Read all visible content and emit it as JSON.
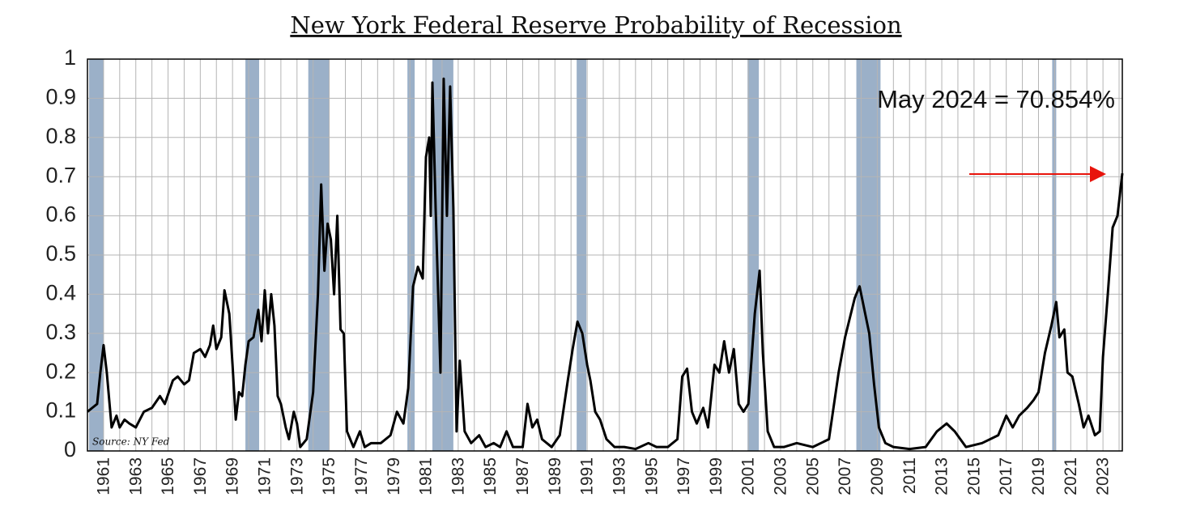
{
  "chart_data": {
    "type": "line",
    "title": "New York Federal Reserve Probability of Recession",
    "annotation": "May 2024 = 70.854%",
    "source": "Source: NY Fed",
    "color": "#000000",
    "recession_color": "#9bb0c8",
    "grid": true,
    "xlim": [
      1960,
      2024.2
    ],
    "ylim": [
      0,
      1
    ],
    "yticks": [
      0,
      0.1,
      0.2,
      0.3,
      0.4,
      0.5,
      0.6,
      0.7,
      0.8,
      0.9,
      1
    ],
    "xticks": [
      1961,
      1963,
      1965,
      1967,
      1969,
      1971,
      1973,
      1975,
      1977,
      1979,
      1981,
      1983,
      1985,
      1987,
      1989,
      1991,
      1993,
      1995,
      1997,
      1999,
      2001,
      2003,
      2005,
      2007,
      2009,
      2011,
      2013,
      2015,
      2017,
      2019,
      2021,
      2023
    ],
    "xminorticks": [
      1962,
      1964,
      1966,
      1968,
      1970,
      1972,
      1974,
      1976,
      1978,
      1980,
      1982,
      1984,
      1986,
      1988,
      1990,
      1992,
      1994,
      1996,
      1998,
      2000,
      2002,
      2004,
      2006,
      2008,
      2010,
      2012,
      2014,
      2016,
      2018,
      2020,
      2022,
      2024
    ],
    "recessions": [
      [
        1960.1,
        1961.0
      ],
      [
        1969.8,
        1970.65
      ],
      [
        1973.7,
        1975.0
      ],
      [
        1979.85,
        1980.3
      ],
      [
        1981.4,
        1982.7
      ],
      [
        1990.35,
        1990.95
      ],
      [
        2000.95,
        2001.65
      ],
      [
        2007.7,
        2009.2
      ],
      [
        2019.85,
        2020.1
      ]
    ],
    "x": [
      1960.0,
      1960.3,
      1960.6,
      1960.8,
      1961.0,
      1961.2,
      1961.5,
      1961.8,
      1962.0,
      1962.3,
      1962.6,
      1963.0,
      1963.5,
      1964.0,
      1964.5,
      1964.8,
      1965.3,
      1965.6,
      1966.0,
      1966.3,
      1966.6,
      1967.0,
      1967.3,
      1967.6,
      1967.8,
      1968.0,
      1968.3,
      1968.5,
      1968.8,
      1969.0,
      1969.2,
      1969.4,
      1969.6,
      1969.8,
      1970.0,
      1970.3,
      1970.6,
      1970.8,
      1971.0,
      1971.2,
      1971.4,
      1971.6,
      1971.8,
      1972.0,
      1972.3,
      1972.5,
      1972.8,
      1973.0,
      1973.2,
      1973.6,
      1974.0,
      1974.3,
      1974.5,
      1974.7,
      1974.9,
      1975.1,
      1975.3,
      1975.5,
      1975.7,
      1975.9,
      1976.1,
      1976.5,
      1976.9,
      1977.2,
      1977.6,
      1978.2,
      1978.8,
      1979.2,
      1979.6,
      1979.9,
      1980.2,
      1980.5,
      1980.8,
      1981.0,
      1981.2,
      1981.3,
      1981.4,
      1981.6,
      1981.9,
      1982.1,
      1982.3,
      1982.5,
      1982.7,
      1982.9,
      1983.1,
      1983.4,
      1983.8,
      1984.3,
      1984.7,
      1985.2,
      1985.6,
      1986.0,
      1986.4,
      1987.0,
      1987.3,
      1987.6,
      1987.9,
      1988.2,
      1988.8,
      1989.3,
      1989.8,
      1990.1,
      1990.4,
      1990.7,
      1991.0,
      1991.2,
      1991.5,
      1991.8,
      1992.2,
      1992.7,
      1993.3,
      1994.0,
      1994.8,
      1995.3,
      1996.0,
      1996.6,
      1996.9,
      1997.2,
      1997.5,
      1997.8,
      1998.2,
      1998.5,
      1998.9,
      1999.2,
      1999.5,
      1999.8,
      2000.1,
      2000.4,
      2000.7,
      2001.0,
      2001.4,
      2001.7,
      2001.9,
      2002.2,
      2002.6,
      2003.2,
      2004.0,
      2005.0,
      2006.0,
      2006.6,
      2007.0,
      2007.3,
      2007.6,
      2007.9,
      2008.2,
      2008.5,
      2008.8,
      2009.1,
      2009.5,
      2010.0,
      2011.0,
      2012.0,
      2012.7,
      2013.3,
      2013.8,
      2014.5,
      2015.5,
      2016.5,
      2017.0,
      2017.4,
      2017.8,
      2018.3,
      2018.7,
      2019.0,
      2019.4,
      2019.8,
      2020.1,
      2020.3,
      2020.6,
      2020.8,
      2021.1,
      2021.5,
      2021.8,
      2022.1,
      2022.5,
      2022.8,
      2023.0,
      2023.3,
      2023.6,
      2023.9,
      2024.2
    ],
    "values": [
      0.1,
      0.11,
      0.12,
      0.2,
      0.27,
      0.2,
      0.06,
      0.09,
      0.06,
      0.08,
      0.07,
      0.06,
      0.1,
      0.11,
      0.14,
      0.12,
      0.18,
      0.19,
      0.17,
      0.18,
      0.25,
      0.26,
      0.24,
      0.27,
      0.32,
      0.26,
      0.29,
      0.41,
      0.35,
      0.22,
      0.08,
      0.15,
      0.14,
      0.22,
      0.28,
      0.29,
      0.36,
      0.28,
      0.41,
      0.3,
      0.4,
      0.32,
      0.14,
      0.12,
      0.06,
      0.03,
      0.1,
      0.07,
      0.01,
      0.03,
      0.15,
      0.4,
      0.68,
      0.46,
      0.58,
      0.54,
      0.4,
      0.6,
      0.31,
      0.3,
      0.05,
      0.01,
      0.05,
      0.01,
      0.02,
      0.02,
      0.04,
      0.1,
      0.07,
      0.16,
      0.42,
      0.47,
      0.44,
      0.75,
      0.8,
      0.6,
      0.94,
      0.62,
      0.2,
      0.95,
      0.6,
      0.93,
      0.62,
      0.05,
      0.23,
      0.05,
      0.02,
      0.04,
      0.01,
      0.02,
      0.01,
      0.05,
      0.01,
      0.01,
      0.12,
      0.06,
      0.08,
      0.03,
      0.01,
      0.04,
      0.18,
      0.26,
      0.33,
      0.3,
      0.22,
      0.18,
      0.1,
      0.08,
      0.03,
      0.01,
      0.01,
      0.005,
      0.02,
      0.01,
      0.01,
      0.03,
      0.19,
      0.21,
      0.1,
      0.07,
      0.11,
      0.06,
      0.22,
      0.2,
      0.28,
      0.2,
      0.26,
      0.12,
      0.1,
      0.12,
      0.35,
      0.46,
      0.25,
      0.05,
      0.01,
      0.01,
      0.02,
      0.01,
      0.03,
      0.2,
      0.29,
      0.34,
      0.39,
      0.42,
      0.36,
      0.3,
      0.17,
      0.06,
      0.02,
      0.01,
      0.005,
      0.01,
      0.05,
      0.07,
      0.05,
      0.01,
      0.02,
      0.04,
      0.09,
      0.06,
      0.09,
      0.11,
      0.13,
      0.15,
      0.25,
      0.32,
      0.38,
      0.29,
      0.31,
      0.2,
      0.19,
      0.12,
      0.06,
      0.09,
      0.04,
      0.05,
      0.24,
      0.4,
      0.57,
      0.6,
      0.70854
    ]
  }
}
